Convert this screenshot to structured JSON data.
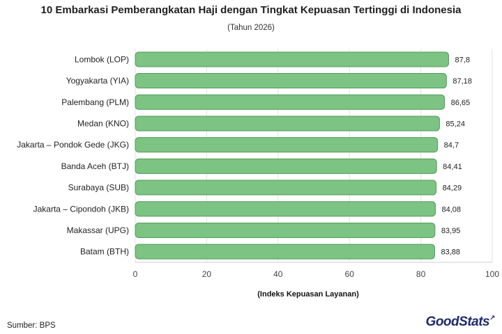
{
  "chart_data": {
    "type": "bar",
    "orientation": "horizontal",
    "title": "10 Embarkasi Pemberangkatan Haji dengan Tingkat Kepuasan Tertinggi di Indonesia",
    "subtitle": "(Tahun 2026)",
    "xlabel": "(Indeks Kepuasan Layanan)",
    "ylabel": "",
    "categories": [
      "Lombok (LOP)",
      "Yogyakarta (YIA)",
      "Palembang (PLM)",
      "Medan (KNO)",
      "Jakarta – Pondok Gede (JKG)",
      "Banda Aceh (BTJ)",
      "Surabaya (SUB)",
      "Jakarta – Cipondoh (JKB)",
      "Makassar (UPG)",
      "Batam (BTH)"
    ],
    "values": [
      87.8,
      87.18,
      86.65,
      85.24,
      84.7,
      84.41,
      84.29,
      84.08,
      83.95,
      83.88
    ],
    "value_labels": [
      "87,8",
      "87,18",
      "86,65",
      "85,24",
      "84,7",
      "84,41",
      "84,29",
      "84,08",
      "83,95",
      "83,88"
    ],
    "xlim": [
      0,
      100
    ],
    "xticks": [
      0,
      20,
      40,
      60,
      80,
      100
    ],
    "grid": "vertical",
    "bar_color": "#7dc383",
    "bar_edge_color": "#4f9e58"
  },
  "footer": {
    "source": "Sumber: BPS",
    "logo": "GoodStats"
  }
}
